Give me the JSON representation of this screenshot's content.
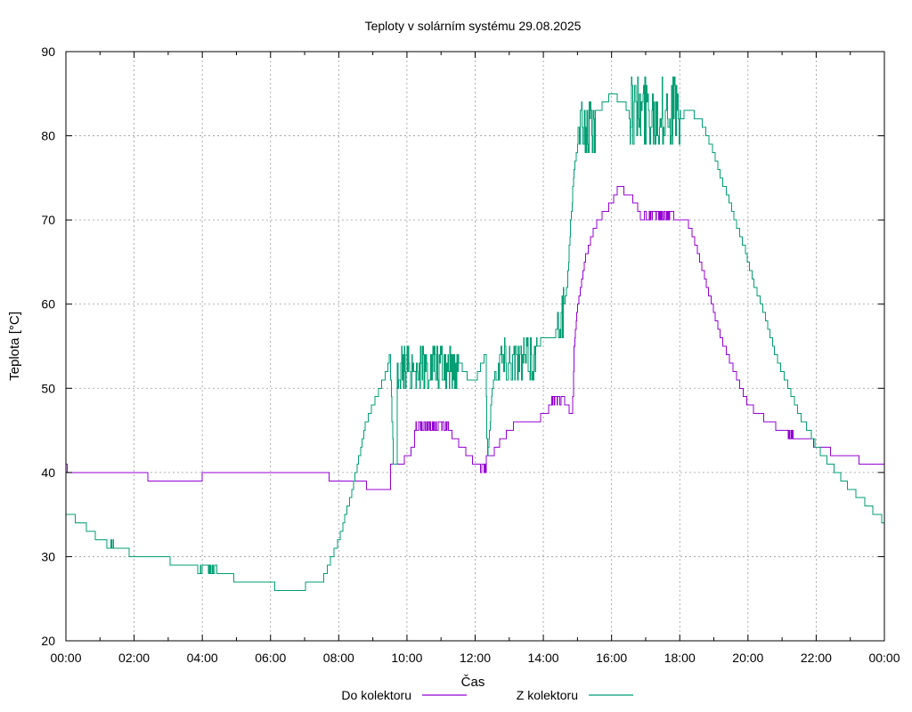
{
  "chart_data": {
    "type": "line",
    "title": "Teploty v solárním systému 29.08.2025",
    "xlabel": "Čas",
    "ylabel": "Teplota [°C]",
    "ylim": [
      20,
      90
    ],
    "xlim_hours": [
      0,
      24
    ],
    "grid": true,
    "legend_position": "bottom",
    "y_ticks": [
      20,
      30,
      40,
      50,
      60,
      70,
      80,
      90
    ],
    "x_ticks": [
      {
        "hour": 0,
        "label": "00:00"
      },
      {
        "hour": 2,
        "label": "02:00"
      },
      {
        "hour": 4,
        "label": "04:00"
      },
      {
        "hour": 6,
        "label": "06:00"
      },
      {
        "hour": 8,
        "label": "08:00"
      },
      {
        "hour": 10,
        "label": "10:00"
      },
      {
        "hour": 12,
        "label": "12:00"
      },
      {
        "hour": 14,
        "label": "14:00"
      },
      {
        "hour": 16,
        "label": "16:00"
      },
      {
        "hour": 18,
        "label": "18:00"
      },
      {
        "hour": 20,
        "label": "20:00"
      },
      {
        "hour": 22,
        "label": "22:00"
      },
      {
        "hour": 24,
        "label": "00:00"
      }
    ],
    "series": [
      {
        "name": "Do kolektoru",
        "color": "#9400d3",
        "points": [
          [
            0,
            41
          ],
          [
            0.05,
            40
          ],
          [
            2.4,
            40
          ],
          [
            2.4,
            39
          ],
          [
            4.0,
            39
          ],
          [
            4.0,
            40
          ],
          [
            7.7,
            40
          ],
          [
            7.7,
            39
          ],
          [
            8.8,
            39
          ],
          [
            8.8,
            38
          ],
          [
            9.5,
            38
          ],
          [
            9.5,
            41
          ],
          [
            9.8,
            41
          ],
          [
            10.0,
            42
          ],
          [
            10.2,
            43
          ],
          [
            10.4,
            44
          ],
          [
            10.6,
            45
          ],
          [
            11.0,
            46
          ],
          [
            11.2,
            45
          ],
          [
            11.4,
            44
          ],
          [
            11.6,
            43
          ],
          [
            11.8,
            42
          ],
          [
            12.0,
            41
          ],
          [
            12.15,
            41
          ],
          [
            12.15,
            40
          ],
          [
            12.3,
            40
          ],
          [
            12.3,
            42
          ],
          [
            12.5,
            42
          ],
          [
            12.6,
            43
          ],
          [
            12.8,
            44
          ],
          [
            13.0,
            45
          ],
          [
            13.2,
            46
          ],
          [
            13.8,
            46
          ],
          [
            14.0,
            47
          ],
          [
            14.3,
            48
          ],
          [
            14.5,
            49
          ],
          [
            14.7,
            48
          ],
          [
            14.8,
            47
          ],
          [
            14.85,
            47
          ],
          [
            14.9,
            55
          ],
          [
            15.0,
            60
          ],
          [
            15.2,
            65
          ],
          [
            15.4,
            68
          ],
          [
            15.6,
            70
          ],
          [
            15.8,
            71
          ],
          [
            16.0,
            72
          ],
          [
            16.2,
            74
          ],
          [
            16.5,
            73
          ],
          [
            16.7,
            72
          ],
          [
            16.8,
            71
          ],
          [
            17.5,
            71
          ],
          [
            18.0,
            70
          ],
          [
            18.2,
            70
          ],
          [
            18.4,
            68
          ],
          [
            18.6,
            65
          ],
          [
            18.8,
            62
          ],
          [
            19.0,
            59
          ],
          [
            19.2,
            56
          ],
          [
            19.4,
            54
          ],
          [
            19.6,
            52
          ],
          [
            19.8,
            50
          ],
          [
            20.0,
            48
          ],
          [
            20.3,
            47
          ],
          [
            20.6,
            46
          ],
          [
            21.0,
            45
          ],
          [
            21.3,
            44
          ],
          [
            21.8,
            44
          ],
          [
            22.0,
            43
          ],
          [
            22.3,
            43
          ],
          [
            22.5,
            42
          ],
          [
            23.0,
            42
          ],
          [
            23.5,
            41
          ],
          [
            24.0,
            41
          ]
        ],
        "noise": [
          {
            "from": 8.9,
            "to": 9.0,
            "low": 38,
            "high": 39
          },
          {
            "from": 10.2,
            "to": 11.2,
            "low": 45,
            "high": 46
          },
          {
            "from": 12.15,
            "to": 12.3,
            "low": 40,
            "high": 41
          },
          {
            "from": 14.2,
            "to": 14.6,
            "low": 48,
            "high": 49
          },
          {
            "from": 16.8,
            "to": 17.8,
            "low": 70,
            "high": 71
          },
          {
            "from": 21.1,
            "to": 21.3,
            "low": 44,
            "high": 45
          }
        ]
      },
      {
        "name": "Z kolektoru",
        "color": "#009e73",
        "points": [
          [
            0,
            35
          ],
          [
            0.25,
            35
          ],
          [
            0.3,
            34
          ],
          [
            0.6,
            34
          ],
          [
            0.6,
            33
          ],
          [
            0.8,
            33
          ],
          [
            0.9,
            32
          ],
          [
            1.2,
            32
          ],
          [
            1.2,
            31
          ],
          [
            1.8,
            31
          ],
          [
            1.9,
            30
          ],
          [
            3.0,
            30
          ],
          [
            3.1,
            29
          ],
          [
            3.8,
            29
          ],
          [
            3.9,
            28
          ],
          [
            4.8,
            28
          ],
          [
            5.0,
            27
          ],
          [
            6.0,
            27
          ],
          [
            6.2,
            26
          ],
          [
            7.0,
            26
          ],
          [
            7.0,
            27
          ],
          [
            7.5,
            27
          ],
          [
            7.6,
            28
          ],
          [
            7.8,
            30
          ],
          [
            8.0,
            32
          ],
          [
            8.2,
            35
          ],
          [
            8.4,
            38
          ],
          [
            8.6,
            42
          ],
          [
            8.8,
            46
          ],
          [
            9.0,
            48
          ],
          [
            9.2,
            50
          ],
          [
            9.4,
            52
          ],
          [
            9.5,
            54
          ],
          [
            9.6,
            41
          ],
          [
            9.7,
            41
          ],
          [
            9.8,
            45
          ],
          [
            9.9,
            49
          ],
          [
            10.0,
            52
          ],
          [
            10.5,
            52
          ],
          [
            10.8,
            53
          ],
          [
            11.0,
            54
          ],
          [
            11.4,
            54
          ],
          [
            11.5,
            53
          ],
          [
            11.7,
            52
          ],
          [
            11.8,
            51
          ],
          [
            12.0,
            51
          ],
          [
            12.1,
            52
          ],
          [
            12.3,
            54
          ],
          [
            12.35,
            42
          ],
          [
            12.4,
            44
          ],
          [
            12.5,
            50
          ],
          [
            12.6,
            52
          ],
          [
            13.0,
            53
          ],
          [
            13.5,
            54
          ],
          [
            13.8,
            55
          ],
          [
            14.0,
            56
          ],
          [
            14.2,
            56
          ],
          [
            14.5,
            57
          ],
          [
            14.6,
            60
          ],
          [
            14.7,
            62
          ],
          [
            14.8,
            70
          ],
          [
            14.9,
            76
          ],
          [
            15.0,
            79
          ],
          [
            15.2,
            82
          ],
          [
            15.6,
            83
          ],
          [
            15.8,
            84
          ],
          [
            16.0,
            85
          ],
          [
            16.3,
            84
          ],
          [
            16.5,
            83
          ],
          [
            17.0,
            82
          ],
          [
            17.5,
            82
          ],
          [
            18.0,
            82
          ],
          [
            18.2,
            83
          ],
          [
            18.6,
            82
          ],
          [
            18.8,
            80
          ],
          [
            19.0,
            78
          ],
          [
            19.2,
            75
          ],
          [
            19.4,
            73
          ],
          [
            19.6,
            70
          ],
          [
            19.8,
            68
          ],
          [
            20.0,
            65
          ],
          [
            20.2,
            62
          ],
          [
            20.4,
            60
          ],
          [
            20.6,
            57
          ],
          [
            20.8,
            54
          ],
          [
            21.0,
            52
          ],
          [
            21.2,
            50
          ],
          [
            21.4,
            48
          ],
          [
            21.6,
            46
          ],
          [
            21.8,
            45
          ],
          [
            22.0,
            43
          ],
          [
            22.2,
            42
          ],
          [
            22.4,
            41
          ],
          [
            22.6,
            40
          ],
          [
            22.8,
            39
          ],
          [
            23.0,
            38
          ],
          [
            23.3,
            37
          ],
          [
            23.5,
            36
          ],
          [
            23.8,
            35
          ],
          [
            24.0,
            34
          ]
        ],
        "noise": [
          {
            "from": 1.3,
            "to": 1.4,
            "low": 31,
            "high": 32
          },
          {
            "from": 3.9,
            "to": 4.4,
            "low": 28,
            "high": 29
          },
          {
            "from": 9.7,
            "to": 11.5,
            "low": 50,
            "high": 55
          },
          {
            "from": 12.6,
            "to": 13.8,
            "low": 51,
            "high": 56
          },
          {
            "from": 14.4,
            "to": 14.6,
            "low": 56,
            "high": 62
          },
          {
            "from": 15.0,
            "to": 15.5,
            "low": 78,
            "high": 84
          },
          {
            "from": 16.5,
            "to": 18.0,
            "low": 79,
            "high": 87
          }
        ]
      }
    ]
  }
}
